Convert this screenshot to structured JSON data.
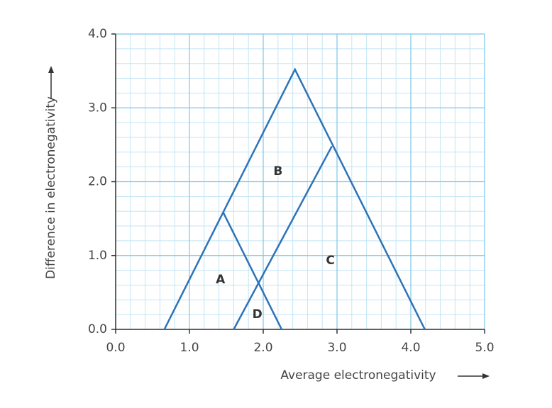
{
  "chart_data": {
    "type": "line",
    "xlabel": "Average electronegativity",
    "ylabel": "Difference in electronegativity",
    "xlim": [
      0,
      5
    ],
    "ylim": [
      0,
      4
    ],
    "xticks": [
      {
        "value": 0,
        "label": "0.0"
      },
      {
        "value": 1,
        "label": "1.0"
      },
      {
        "value": 2,
        "label": "2.0"
      },
      {
        "value": 3,
        "label": "3.0"
      },
      {
        "value": 4,
        "label": "4.0"
      },
      {
        "value": 5,
        "label": "5.0"
      }
    ],
    "yticks": [
      {
        "value": 0,
        "label": "0.0"
      },
      {
        "value": 1,
        "label": "1.0"
      },
      {
        "value": 2,
        "label": "2.0"
      },
      {
        "value": 3,
        "label": "3.0"
      },
      {
        "value": 4,
        "label": "4.0"
      }
    ],
    "xminorticks": [
      0.2,
      0.4,
      0.6,
      0.8,
      1.2,
      1.4,
      1.6,
      1.8,
      2.2,
      2.4,
      2.6,
      2.8,
      3.2,
      3.4,
      3.6,
      3.8,
      4.2,
      4.4,
      4.6,
      4.8
    ],
    "yminorticks": [
      0.2,
      0.4,
      0.6,
      0.8,
      1.2,
      1.4,
      1.6,
      1.8,
      2.2,
      2.4,
      2.6,
      2.8,
      3.2,
      3.4,
      3.6,
      3.8
    ],
    "grid": true,
    "grid_color": "#7cc6ea",
    "minor_grid_color": "#c3e5f6",
    "series": [
      {
        "color": "#2e73b8",
        "x": [
          0.66,
          2.43,
          4.19
        ],
        "values": [
          0,
          3.52,
          0
        ]
      },
      {
        "color": "#2e73b8",
        "x": [
          1.46,
          2.25
        ],
        "values": [
          1.58,
          0
        ]
      },
      {
        "color": "#2e73b8",
        "x": [
          1.6,
          2.93
        ],
        "values": [
          0,
          2.48
        ]
      }
    ],
    "annotations": [
      {
        "text": "A",
        "x": 1.42,
        "y": 0.67
      },
      {
        "text": "B",
        "x": 2.2,
        "y": 2.14
      },
      {
        "text": "C",
        "x": 2.91,
        "y": 0.93
      },
      {
        "text": "D",
        "x": 1.92,
        "y": 0.2
      }
    ]
  }
}
